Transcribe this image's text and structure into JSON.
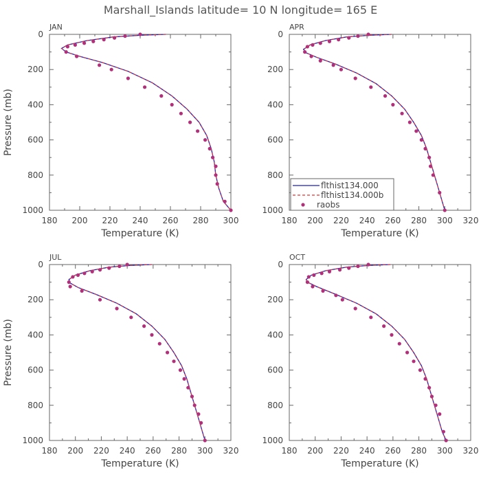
{
  "title": "Marshall_Islands  latitude= 10 N longitude= 165 E",
  "chart_data": [
    {
      "type": "line",
      "panel": "JAN",
      "xlabel": "Temperature (K)",
      "ylabel": "Pressure (mb)",
      "xlim": [
        180,
        300
      ],
      "ylim": [
        0,
        1000
      ],
      "yinverted": true,
      "xticks": [
        180,
        200,
        220,
        240,
        260,
        280,
        300
      ],
      "yticks": [
        0,
        200,
        400,
        600,
        800,
        1000
      ],
      "grid": false,
      "series": [
        {
          "name": "flthist134.000",
          "style": "solid",
          "color": "#1f1fb4",
          "x": [
            257,
            240,
            222,
            205,
            192,
            188,
            191,
            200,
            215,
            232,
            248,
            261,
            271,
            279,
            284,
            287,
            289,
            290,
            292,
            295,
            300
          ],
          "y": [
            0,
            5,
            15,
            35,
            60,
            80,
            100,
            125,
            160,
            210,
            275,
            350,
            425,
            500,
            575,
            650,
            725,
            800,
            875,
            950,
            1000
          ]
        },
        {
          "name": "flthist134.000b",
          "style": "dashed",
          "color": "#e03030",
          "x": [
            257,
            240,
            222,
            205,
            192,
            188,
            191,
            200,
            215,
            232,
            248,
            261,
            271,
            279,
            284,
            287,
            289,
            290,
            292,
            295,
            300
          ],
          "y": [
            0,
            5,
            15,
            35,
            60,
            80,
            100,
            125,
            160,
            210,
            275,
            350,
            425,
            500,
            575,
            650,
            725,
            800,
            875,
            950,
            1000
          ]
        },
        {
          "name": "raobs",
          "style": "points",
          "color": "#b0307a",
          "x": [
            240,
            230,
            223,
            216,
            209,
            203,
            197,
            192,
            191,
            198,
            213,
            221,
            232,
            243,
            254,
            261,
            267,
            273,
            278,
            283,
            286,
            288,
            290,
            290,
            291,
            296,
            300
          ],
          "y": [
            0,
            10,
            20,
            30,
            40,
            50,
            60,
            70,
            100,
            125,
            175,
            200,
            250,
            300,
            350,
            400,
            450,
            500,
            550,
            600,
            650,
            700,
            750,
            800,
            850,
            950,
            1000
          ]
        }
      ]
    },
    {
      "type": "line",
      "panel": "APR",
      "xlabel": "Temperature (K)",
      "ylabel": "",
      "xlim": [
        180,
        320
      ],
      "ylim": [
        0,
        1000
      ],
      "yinverted": true,
      "xticks": [
        180,
        200,
        220,
        240,
        260,
        280,
        300,
        320
      ],
      "yticks": [
        0,
        200,
        400,
        600,
        800,
        1000
      ],
      "grid": false,
      "legend": "bottom-left",
      "series": [
        {
          "name": "flthist134.000",
          "style": "solid",
          "color": "#1f1fb4",
          "x": [
            259,
            242,
            224,
            208,
            196,
            191,
            193,
            201,
            216,
            232,
            247,
            259,
            269,
            276,
            282,
            286,
            289,
            292,
            295,
            298,
            300
          ],
          "y": [
            0,
            5,
            15,
            35,
            60,
            85,
            105,
            130,
            170,
            220,
            280,
            350,
            425,
            500,
            575,
            650,
            725,
            800,
            875,
            950,
            1000
          ]
        },
        {
          "name": "flthist134.000b",
          "style": "dashed",
          "color": "#e03030",
          "x": [
            259,
            242,
            224,
            208,
            196,
            191,
            193,
            201,
            216,
            232,
            247,
            259,
            269,
            276,
            282,
            286,
            289,
            292,
            295,
            298,
            300
          ],
          "y": [
            0,
            5,
            15,
            35,
            60,
            85,
            105,
            130,
            170,
            220,
            280,
            350,
            425,
            500,
            575,
            650,
            725,
            800,
            875,
            950,
            1000
          ]
        },
        {
          "name": "raobs",
          "style": "points",
          "color": "#b0307a",
          "x": [
            241,
            233,
            226,
            218,
            211,
            204,
            198,
            194,
            192,
            197,
            204,
            214,
            220,
            231,
            243,
            254,
            260,
            267,
            273,
            278,
            282,
            285,
            288,
            289,
            291,
            296,
            300
          ],
          "y": [
            0,
            10,
            20,
            30,
            40,
            50,
            60,
            70,
            100,
            125,
            150,
            175,
            200,
            250,
            300,
            350,
            400,
            450,
            500,
            550,
            600,
            650,
            700,
            750,
            800,
            900,
            1000
          ]
        }
      ]
    },
    {
      "type": "line",
      "panel": "JUL",
      "xlabel": "Temperature (K)",
      "ylabel": "Pressure (mb)",
      "xlim": [
        180,
        320
      ],
      "ylim": [
        0,
        1000
      ],
      "yinverted": true,
      "xticks": [
        180,
        200,
        220,
        240,
        260,
        280,
        300,
        320
      ],
      "yticks": [
        0,
        200,
        400,
        600,
        800,
        1000
      ],
      "grid": false,
      "series": [
        {
          "name": "flthist134.000",
          "style": "solid",
          "color": "#1f1fb4",
          "x": [
            259,
            242,
            226,
            211,
            200,
            195,
            196,
            202,
            216,
            232,
            247,
            259,
            269,
            276,
            282,
            286,
            289,
            292,
            295,
            298,
            300
          ],
          "y": [
            0,
            5,
            15,
            35,
            60,
            85,
            105,
            130,
            170,
            220,
            280,
            350,
            425,
            500,
            575,
            650,
            725,
            800,
            875,
            950,
            1000
          ]
        },
        {
          "name": "flthist134.000b",
          "style": "dashed",
          "color": "#e03030",
          "x": [
            259,
            242,
            226,
            211,
            200,
            195,
            196,
            202,
            216,
            232,
            247,
            259,
            269,
            276,
            282,
            286,
            289,
            292,
            295,
            298,
            300
          ],
          "y": [
            0,
            5,
            15,
            35,
            60,
            85,
            105,
            130,
            170,
            220,
            280,
            350,
            425,
            500,
            575,
            650,
            725,
            800,
            875,
            950,
            1000
          ]
        },
        {
          "name": "raobs",
          "style": "points",
          "color": "#b0307a",
          "x": [
            240,
            234,
            226,
            219,
            213,
            207,
            202,
            198,
            195,
            196,
            205,
            219,
            232,
            243,
            253,
            259,
            265,
            271,
            276,
            281,
            284,
            287,
            290,
            292,
            295,
            297,
            300
          ],
          "y": [
            0,
            10,
            20,
            30,
            40,
            50,
            60,
            70,
            100,
            125,
            150,
            200,
            250,
            300,
            350,
            400,
            450,
            500,
            550,
            600,
            650,
            700,
            750,
            800,
            850,
            900,
            1000
          ]
        }
      ]
    },
    {
      "type": "line",
      "panel": "OCT",
      "xlabel": "Temperature (K)",
      "ylabel": "",
      "xlim": [
        180,
        320
      ],
      "ylim": [
        0,
        1000
      ],
      "yinverted": true,
      "xticks": [
        180,
        200,
        220,
        240,
        260,
        280,
        300,
        320
      ],
      "yticks": [
        0,
        200,
        400,
        600,
        800,
        1000
      ],
      "grid": false,
      "series": [
        {
          "name": "flthist134.000",
          "style": "solid",
          "color": "#1f1fb4",
          "x": [
            258,
            241,
            224,
            208,
            197,
            193,
            194,
            201,
            216,
            232,
            247,
            259,
            269,
            276,
            282,
            286,
            289,
            292,
            295,
            298,
            301
          ],
          "y": [
            0,
            5,
            15,
            35,
            60,
            85,
            100,
            125,
            170,
            220,
            280,
            350,
            425,
            500,
            575,
            650,
            725,
            800,
            875,
            950,
            1000
          ]
        },
        {
          "name": "flthist134.000b",
          "style": "dashed",
          "color": "#e03030",
          "x": [
            258,
            241,
            224,
            208,
            197,
            193,
            194,
            201,
            216,
            232,
            247,
            259,
            269,
            276,
            282,
            286,
            289,
            292,
            295,
            298,
            301
          ],
          "y": [
            0,
            5,
            15,
            35,
            60,
            85,
            100,
            125,
            170,
            220,
            280,
            350,
            425,
            500,
            575,
            650,
            725,
            800,
            875,
            950,
            1000
          ]
        },
        {
          "name": "raobs",
          "style": "points",
          "color": "#b0307a",
          "x": [
            241,
            233,
            226,
            219,
            211,
            205,
            199,
            195,
            194,
            198,
            206,
            216,
            221,
            231,
            243,
            253,
            259,
            265,
            271,
            276,
            281,
            285,
            288,
            290,
            293,
            296,
            299,
            301
          ],
          "y": [
            0,
            10,
            20,
            30,
            40,
            50,
            60,
            70,
            100,
            125,
            150,
            175,
            200,
            250,
            300,
            350,
            400,
            450,
            500,
            550,
            600,
            650,
            700,
            750,
            800,
            850,
            950,
            1000
          ]
        }
      ]
    }
  ]
}
